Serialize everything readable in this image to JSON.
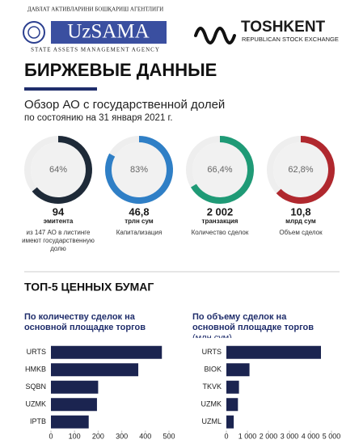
{
  "header": {
    "agency_uz": "ДАВЛАТ АКТИВЛАРИНИ БОШҚАРИШ АГЕНТЛИГИ",
    "agency_logo": "UzSAMA",
    "agency_en": "STATE ASSETS MANAGEMENT AGENCY",
    "exchange": "TOSHKENT",
    "exchange_sub": "REPUBLICAN STOCK EXCHANGE",
    "title": "БИРЖЕВЫЕ ДАННЫЕ",
    "subtitle": "Обзор АО с государственной долей",
    "date": "по состоянию на 31 января 2021 г.",
    "section": "ТОП-5 ЦЕННЫХ БУМАГ"
  },
  "chart_data": [
    {
      "type": "donut",
      "values": [
        64
      ],
      "value_labels": [
        "64%"
      ],
      "color": "#1e2a38",
      "stat": "94",
      "unit": "эмитента",
      "caption": "из 147 АО в листинге имеют государственную долю"
    },
    {
      "type": "donut",
      "values": [
        83
      ],
      "value_labels": [
        "83%"
      ],
      "color": "#2f7fc6",
      "stat": "46,8",
      "unit": "трлн сум",
      "caption": "Капитализация"
    },
    {
      "type": "donut",
      "values": [
        66.4
      ],
      "value_labels": [
        "66,4%"
      ],
      "color": "#1f9a76",
      "stat": "2 002",
      "unit": "транзакция",
      "caption": "Количество сделок"
    },
    {
      "type": "donut",
      "values": [
        62.8
      ],
      "value_labels": [
        "62,8%"
      ],
      "color": "#b0282e",
      "stat": "10,8",
      "unit": "млрд сум",
      "caption": "Объем сделок"
    },
    {
      "type": "hbar",
      "title": "По количеству сделок на основной площадке торгов",
      "categories": [
        "URTS",
        "HMKB",
        "SQBN",
        "UZMK",
        "IPTB"
      ],
      "values": [
        470,
        370,
        200,
        195,
        160
      ],
      "color": "#1b2450",
      "xlim": [
        0,
        500
      ],
      "xticks": [
        0,
        100,
        200,
        300,
        400,
        500
      ]
    },
    {
      "type": "hbar",
      "title": "По объему сделок на основной площадке торгов",
      "unit": "(млн сум)",
      "categories": [
        "URTS",
        "BIOK",
        "TKVK",
        "UZMK",
        "UZML"
      ],
      "values": [
        4500,
        1100,
        600,
        550,
        350
      ],
      "color": "#1b2450",
      "xlim": [
        0,
        5000
      ],
      "xticks": [
        0,
        {
          "value": 1000,
          "label": "1 000"
        },
        {
          "value": 2000,
          "label": "2 000"
        },
        {
          "value": 3000,
          "label": "3 000"
        },
        {
          "value": 4000,
          "label": "4 000"
        },
        {
          "value": 5000,
          "label": "5 000"
        }
      ]
    }
  ]
}
